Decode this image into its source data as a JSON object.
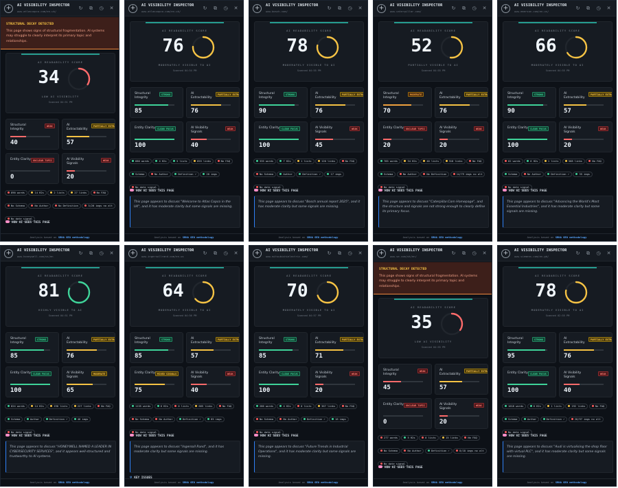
{
  "app_title": "AI VISIBILITY INSPECTOR",
  "header_icons": [
    "refresh-icon",
    "copy-icon",
    "history-icon",
    "close-icon"
  ],
  "score_label": "AI READABILITY SCORE",
  "how_ai_label": "HOW AI SEES THIS PAGE",
  "key_issues_label": "KEY ISSUES",
  "footer": {
    "prefix": "Analysis based on ",
    "link": "SRNA GEO methodology"
  },
  "alert": {
    "title": "STRUCTURAL DECAY DETECTED",
    "body": "This page shows signs of structural fragmentation. AI systems may struggle to clearly interpret its primary topic and relationships."
  },
  "metric_names": {
    "structural": "Structural Integrity",
    "extract": "AI Extractability",
    "entity": "Entity Clarity",
    "signals": "AI Visibility Signals"
  },
  "colors": {
    "green": "#3fd49a",
    "yellow": "#f6c344",
    "red": "#ff6b6b",
    "blue": "#2f81f7"
  },
  "panels": [
    {
      "url": "www.atlascopco.com/en-uk/",
      "alert": true,
      "score": 34,
      "status": "LOW AI VISIBILITY",
      "time": "Scanned 04:51 PM",
      "tone": "red",
      "metrics": [
        {
          "badge": "WEAK",
          "tone": "red",
          "value": 40
        },
        {
          "badge": "PARTIALLY EXTRACTABLE",
          "tone": "yellow",
          "value": 57
        },
        {
          "badge": "UNCLEAR TOPIC",
          "tone": "red",
          "value": 0
        },
        {
          "badge": "WEAK",
          "tone": "red",
          "value": 20
        }
      ],
      "stats": [
        {
          "t": "890 words",
          "d": "red"
        },
        {
          "t": "14 H2s",
          "d": "yellow"
        },
        {
          "t": "2 lists",
          "d": "yellow"
        },
        {
          "t": "27 links",
          "d": "yellow"
        },
        {
          "t": "No FAQ",
          "d": "red"
        },
        {
          "t": "No Schema",
          "d": "red"
        },
        {
          "t": "No Author",
          "d": "red"
        },
        {
          "t": "No Definition",
          "d": "red"
        },
        {
          "t": "3/20 imgs no alt",
          "d": "red"
        },
        {
          "t": "No date signal",
          "d": "red"
        }
      ],
      "summary": ""
    },
    {
      "url": "www.atlascopco.com/en-uk/",
      "alert": false,
      "score": 76,
      "status": "MODERATELY VISIBLE TO AI",
      "time": "Scanned 04:54 PM",
      "tone": "yellow",
      "metrics": [
        {
          "badge": "STRONG",
          "tone": "green",
          "value": 85
        },
        {
          "badge": "PARTIALLY EXTRACTABLE",
          "tone": "yellow",
          "value": 76
        },
        {
          "badge": "CLEAR FOCUS",
          "tone": "green",
          "value": 100
        },
        {
          "badge": "WEAK",
          "tone": "red",
          "value": 40
        }
      ],
      "stats": [
        {
          "t": "680 words",
          "d": "green"
        },
        {
          "t": "4 H2s",
          "d": "green"
        },
        {
          "t": "5 lists",
          "d": "green"
        },
        {
          "t": "855 links",
          "d": "yellow"
        },
        {
          "t": "No FAQ",
          "d": "red"
        },
        {
          "t": "Schema",
          "d": "green"
        },
        {
          "t": "No Author",
          "d": "red"
        },
        {
          "t": "Definition ✓",
          "d": "green"
        },
        {
          "t": "20 imgs",
          "d": "green"
        },
        {
          "t": "No date signal",
          "d": "red"
        }
      ],
      "summary": "This page appears to discuss \"Welcome to Atlas Copco in the UK\", and it has moderate clarity but some signals are missing."
    },
    {
      "url": "www.bosch.com/",
      "alert": false,
      "score": 78,
      "status": "MODERATELY VISIBLE TO AI",
      "time": "Scanned 04:55 PM",
      "tone": "yellow",
      "metrics": [
        {
          "badge": "STRONG",
          "tone": "green",
          "value": 90
        },
        {
          "badge": "PARTIALLY EXTRACTABLE",
          "tone": "yellow",
          "value": 76
        },
        {
          "badge": "CLEAR FOCUS",
          "tone": "green",
          "value": 100
        },
        {
          "badge": "WEAK",
          "tone": "red",
          "value": 45
        }
      ],
      "stats": [
        {
          "t": "335 words",
          "d": "green"
        },
        {
          "t": "7 H2s",
          "d": "green"
        },
        {
          "t": "1 lists",
          "d": "yellow"
        },
        {
          "t": "120 links",
          "d": "yellow"
        },
        {
          "t": "No FAQ",
          "d": "red"
        },
        {
          "t": "No Schema",
          "d": "red"
        },
        {
          "t": "Author",
          "d": "green"
        },
        {
          "t": "Definition ✓",
          "d": "green"
        },
        {
          "t": "17 imgs",
          "d": "green"
        },
        {
          "t": "No date signal",
          "d": "red"
        }
      ],
      "summary": "This page appears to discuss \"Bosch annual report 2025\", and it has moderate clarity but some signals are missing."
    },
    {
      "url": "www.caterpillar.com/",
      "alert": false,
      "score": 52,
      "status": "PARTIALLY VISIBLE TO AI",
      "time": "Scanned 04:55 PM",
      "tone": "yellow",
      "metrics": [
        {
          "badge": "MODERATE",
          "tone": "orange",
          "value": 70
        },
        {
          "badge": "PARTIALLY EXTRACTABLE",
          "tone": "yellow",
          "value": 76
        },
        {
          "badge": "UNCLEAR TOPIC",
          "tone": "red",
          "value": 20
        },
        {
          "badge": "WEAK",
          "tone": "red",
          "value": 20
        }
      ],
      "stats": [
        {
          "t": "785 words",
          "d": "green"
        },
        {
          "t": "34 H2s",
          "d": "yellow"
        },
        {
          "t": "40 lists",
          "d": "yellow"
        },
        {
          "t": "318 links",
          "d": "yellow"
        },
        {
          "t": "No FAQ",
          "d": "red"
        },
        {
          "t": "Schema",
          "d": "green"
        },
        {
          "t": "No Author",
          "d": "red"
        },
        {
          "t": "No Definition",
          "d": "red"
        },
        {
          "t": "14/79 imgs no alt",
          "d": "red"
        },
        {
          "t": "No date signal",
          "d": "red"
        }
      ],
      "summary": "This page appears to discuss \"Caterpillar.Com Homepage\", and the structure and signals are not strong enough to clearly define its primary focus."
    },
    {
      "url": "www.emerson.com/en-us/",
      "alert": false,
      "score": 66,
      "status": "MODERATELY VISIBLE TO AI",
      "time": "Scanned 04:55 PM",
      "tone": "yellow",
      "metrics": [
        {
          "badge": "STRONG",
          "tone": "green",
          "value": 90
        },
        {
          "badge": "PARTIALLY EXTRACTABLE",
          "tone": "yellow",
          "value": 57
        },
        {
          "badge": "CLEAR FOCUS",
          "tone": "green",
          "value": 100
        },
        {
          "badge": "WEAK",
          "tone": "red",
          "value": 20
        }
      ],
      "stats": [
        {
          "t": "82 words",
          "d": "red"
        },
        {
          "t": "6 H2s",
          "d": "green"
        },
        {
          "t": "1 lists",
          "d": "yellow"
        },
        {
          "t": "568 links",
          "d": "yellow"
        },
        {
          "t": "No FAQ",
          "d": "red"
        },
        {
          "t": "Schema",
          "d": "green"
        },
        {
          "t": "No Author",
          "d": "red"
        },
        {
          "t": "Definition ✓",
          "d": "green"
        },
        {
          "t": "35 imgs",
          "d": "green"
        },
        {
          "t": "No date signal",
          "d": "red"
        }
      ],
      "summary": "This page appears to discuss \"Advancing the World's Most Essential Industries\", and it has moderate clarity but some signals are missing."
    },
    {
      "url": "www.honeywell.com/us/en",
      "alert": false,
      "score": 81,
      "status": "HIGHLY VISIBLE TO AI",
      "time": "Scanned 04:51 PM",
      "tone": "green",
      "metrics": [
        {
          "badge": "STRONG",
          "tone": "green",
          "value": 85
        },
        {
          "badge": "PARTIALLY EXTRACTABLE",
          "tone": "yellow",
          "value": 76
        },
        {
          "badge": "CLEAR FOCUS",
          "tone": "green",
          "value": 100
        },
        {
          "badge": "MODERATE",
          "tone": "yellow",
          "value": 65
        }
      ],
      "stats": [
        {
          "t": "824 words",
          "d": "green"
        },
        {
          "t": "14 H2s",
          "d": "yellow"
        },
        {
          "t": "190 lists",
          "d": "yellow"
        },
        {
          "t": "227 links",
          "d": "yellow"
        },
        {
          "t": "No FAQ",
          "d": "red"
        },
        {
          "t": "Schema",
          "d": "green"
        },
        {
          "t": "Author",
          "d": "green"
        },
        {
          "t": "Definition ✓",
          "d": "green"
        },
        {
          "t": "46 imgs",
          "d": "green"
        },
        {
          "t": "No date signal",
          "d": "red"
        }
      ],
      "summary": "This page appears to discuss \"HONEYWELL NAMED A LEADER IN CYBERSECURITY SERVICES\", and it appears well-structured and trustworthy to AI systems."
    },
    {
      "url": "www.ingersollrand.com/en-us",
      "alert": false,
      "score": 64,
      "status": "MODERATELY VISIBLE TO AI",
      "time": "Scanned 04:56 PM",
      "tone": "yellow",
      "metrics": [
        {
          "badge": "STRONG",
          "tone": "green",
          "value": 85
        },
        {
          "badge": "PARTIALLY EXTRACTABLE",
          "tone": "yellow",
          "value": 57
        },
        {
          "badge": "MIXED SIGNALS",
          "tone": "yellow",
          "value": 75
        },
        {
          "badge": "WEAK",
          "tone": "red",
          "value": 40
        }
      ],
      "stats": [
        {
          "t": "1135 words",
          "d": "green"
        },
        {
          "t": "6 H2s",
          "d": "green"
        },
        {
          "t": "0 lists",
          "d": "red"
        },
        {
          "t": "665 links",
          "d": "yellow"
        },
        {
          "t": "No FAQ",
          "d": "red"
        },
        {
          "t": "No Schema",
          "d": "red"
        },
        {
          "t": "No Author",
          "d": "red"
        },
        {
          "t": "Definition ✓",
          "d": "green"
        },
        {
          "t": "85 imgs",
          "d": "green"
        },
        {
          "t": "No date signal",
          "d": "red"
        }
      ],
      "summary": "This page appears to discuss \"Ingersoll Rand\", and it has moderate clarity but some signals are missing."
    },
    {
      "url": "www.mitsubishielectric.com/",
      "alert": false,
      "score": 70,
      "status": "MODERATELY VISIBLE TO AI",
      "time": "Scanned 04:57 PM",
      "tone": "yellow",
      "metrics": [
        {
          "badge": "STRONG",
          "tone": "green",
          "value": 85
        },
        {
          "badge": "PARTIALLY EXTRACTABLE",
          "tone": "yellow",
          "value": 71
        },
        {
          "badge": "CLEAR FOCUS",
          "tone": "green",
          "value": 100
        },
        {
          "badge": "WEAK",
          "tone": "red",
          "value": 20
        }
      ],
      "stats": [
        {
          "t": "286 words",
          "d": "green"
        },
        {
          "t": "4 H2s",
          "d": "green"
        },
        {
          "t": "0 lists",
          "d": "red"
        },
        {
          "t": "367 links",
          "d": "yellow"
        },
        {
          "t": "No FAQ",
          "d": "red"
        },
        {
          "t": "No Schema",
          "d": "red"
        },
        {
          "t": "No Author",
          "d": "red"
        },
        {
          "t": "Definition ✓",
          "d": "green"
        },
        {
          "t": "16 imgs",
          "d": "green"
        },
        {
          "t": "No date signal",
          "d": "red"
        }
      ],
      "summary": "This page appears to discuss \"Future Trends in Industrial Operations\", and it has moderate clarity but some signals are missing."
    },
    {
      "url": "www.se.com/uk/en/",
      "alert": true,
      "score": 35,
      "status": "LOW AI VISIBILITY",
      "time": "Scanned 04:55 PM",
      "tone": "red",
      "metrics": [
        {
          "badge": "WEAK",
          "tone": "red",
          "value": 45
        },
        {
          "badge": "PARTIALLY EXTRACTABLE",
          "tone": "yellow",
          "value": 57
        },
        {
          "badge": "UNCLEAR TOPIC",
          "tone": "red",
          "value": 0
        },
        {
          "badge": "WEAK",
          "tone": "red",
          "value": 20
        }
      ],
      "stats": [
        {
          "t": "277 words",
          "d": "red"
        },
        {
          "t": "5 H2s",
          "d": "green"
        },
        {
          "t": "0 lists",
          "d": "red"
        },
        {
          "t": "15 links",
          "d": "yellow"
        },
        {
          "t": "No FAQ",
          "d": "red"
        },
        {
          "t": "No Schema",
          "d": "red"
        },
        {
          "t": "No Author",
          "d": "red"
        },
        {
          "t": "Definition ✓",
          "d": "green"
        },
        {
          "t": "8/18 imgs no alt",
          "d": "red"
        },
        {
          "t": "No date signal",
          "d": "red"
        }
      ],
      "summary": ""
    },
    {
      "url": "www.siemens.com/en-gb/",
      "alert": false,
      "score": 78,
      "status": "MODERATELY VISIBLE TO AI",
      "time": "Scanned 02:55 PM",
      "tone": "yellow",
      "metrics": [
        {
          "badge": "STRONG",
          "tone": "green",
          "value": 95
        },
        {
          "badge": "PARTIALLY EXTRACTABLE",
          "tone": "yellow",
          "value": 76
        },
        {
          "badge": "CLEAR FOCUS",
          "tone": "green",
          "value": 100
        },
        {
          "badge": "WEAK",
          "tone": "red",
          "value": 40
        }
      ],
      "stats": [
        {
          "t": "1018 words",
          "d": "green"
        },
        {
          "t": "6 H2s",
          "d": "green"
        },
        {
          "t": "1 lists",
          "d": "yellow"
        },
        {
          "t": "192 links",
          "d": "yellow"
        },
        {
          "t": "No FAQ",
          "d": "red"
        },
        {
          "t": "Schema",
          "d": "green"
        },
        {
          "t": "Author",
          "d": "green"
        },
        {
          "t": "Definition ✓",
          "d": "green"
        },
        {
          "t": "20/97 imgs no alt",
          "d": "red"
        },
        {
          "t": "No date signal",
          "d": "red"
        }
      ],
      "summary": "This page appears to discuss \"Audi is virtualising the shop floor with virtual PLC\", and it has moderate clarity but some signals are missing."
    }
  ]
}
